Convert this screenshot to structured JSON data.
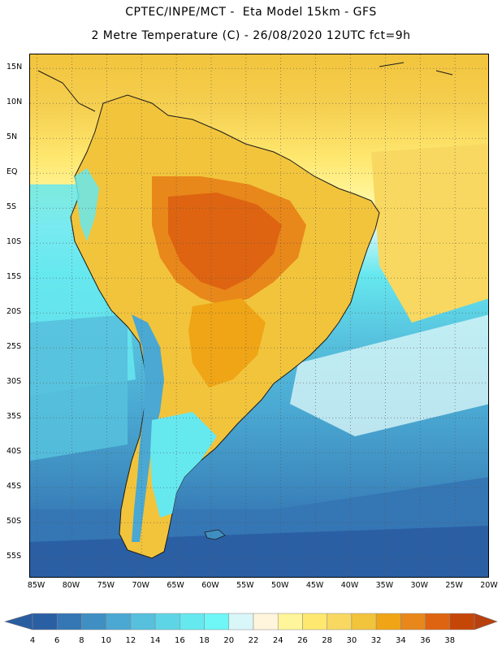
{
  "title": {
    "line1": "CPTEC/INPE/MCT -  Eta Model 15km - GFS",
    "line2": "2 Metre Temperature (C) - 26/08/2020 12UTC fct=9h"
  },
  "axes": {
    "lat_labels": [
      "15N",
      "10N",
      "5N",
      "EQ",
      "5S",
      "10S",
      "15S",
      "20S",
      "25S",
      "30S",
      "35S",
      "40S",
      "45S",
      "50S",
      "55S"
    ],
    "lat_values": [
      15,
      10,
      5,
      0,
      -5,
      -10,
      -15,
      -20,
      -25,
      -30,
      -35,
      -40,
      -45,
      -50,
      -55
    ],
    "lon_labels": [
      "85W",
      "80W",
      "75W",
      "70W",
      "65W",
      "60W",
      "55W",
      "50W",
      "45W",
      "40W",
      "35W",
      "30W",
      "25W",
      "20W"
    ],
    "lon_values": [
      -85,
      -80,
      -75,
      -70,
      -65,
      -60,
      -55,
      -50,
      -45,
      -40,
      -35,
      -30,
      -25,
      -20
    ],
    "lon_range": [
      -86,
      -20
    ],
    "lat_range": [
      -58,
      17
    ]
  },
  "colorbar": {
    "levels": [
      "4",
      "6",
      "8",
      "10",
      "12",
      "14",
      "16",
      "18",
      "20",
      "22",
      "24",
      "26",
      "28",
      "30",
      "32",
      "34",
      "36",
      "38"
    ],
    "colors": [
      "#2b5fa4",
      "#3576b4",
      "#3f8fc2",
      "#4aa8d2",
      "#56c0dd",
      "#5ed5e6",
      "#66e8ef",
      "#6ff6f6",
      "#d9f6f8",
      "#fff5dc",
      "#fff59a",
      "#ffe870",
      "#f8d860",
      "#f2c43c",
      "#efa516",
      "#e8871a",
      "#de6411",
      "#c54708"
    ],
    "under_color": "#2a5da0",
    "over_color": "#b8400e"
  }
}
